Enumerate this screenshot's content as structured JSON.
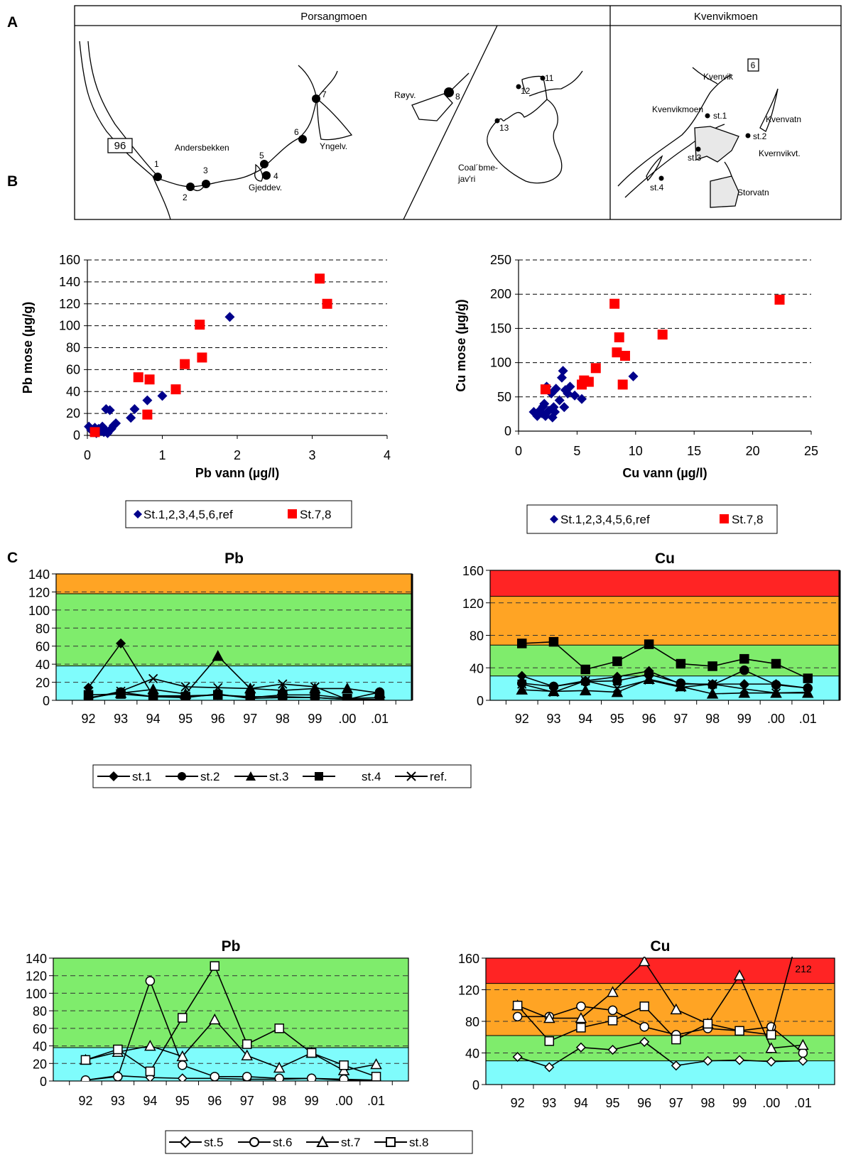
{
  "panels": {
    "a": "A",
    "b": "B",
    "c": "C"
  },
  "map": {
    "region_left": "Porsangmoen",
    "region_right": "Kvenvikmoen",
    "road_left": "96",
    "road_right": "6",
    "labels": {
      "andersbekken": "Andersbekken",
      "royv": "Røyv.",
      "yngelv": "Yngelv.",
      "gjeddev": "Gjeddev.",
      "coalbme": "Coal´bme-",
      "javri": "jav'ri",
      "kvenvik": "Kvenvik",
      "kvenvikmoen": "Kvenvikmoen",
      "kvenvatn": "Kvenvatn",
      "kvernvikvt": "Kvernvikvt.",
      "storvatn": "Storvatn",
      "st1": "st.1",
      "st2": "st.2",
      "st3": "st.3",
      "st4": "st.4"
    },
    "stations": [
      "1",
      "2",
      "3",
      "4",
      "5",
      "6",
      "7",
      "8",
      "11",
      "12",
      "13"
    ]
  },
  "chart_data": [
    {
      "id": "pb_scatter",
      "type": "scatter",
      "xlabel": "Pb vann (µg/l)",
      "ylabel": "Pb mose (µg/g)",
      "xlim": [
        0,
        4
      ],
      "ylim": [
        0,
        160
      ],
      "xticks": [
        0,
        1,
        2,
        3,
        4
      ],
      "yticks": [
        0,
        20,
        40,
        60,
        80,
        100,
        120,
        140,
        160
      ],
      "grid": "horizontal dashed",
      "legend_position": "bottom",
      "series": [
        {
          "name": "St.1,2,3,4,5,6,ref",
          "marker": "diamond",
          "color": "#00008b",
          "points": [
            [
              0.02,
              8
            ],
            [
              0.05,
              5
            ],
            [
              0.08,
              3
            ],
            [
              0.1,
              7
            ],
            [
              0.12,
              2
            ],
            [
              0.15,
              6
            ],
            [
              0.18,
              4
            ],
            [
              0.2,
              8
            ],
            [
              0.22,
              3
            ],
            [
              0.24,
              5
            ],
            [
              0.25,
              24
            ],
            [
              0.27,
              2
            ],
            [
              0.3,
              23
            ],
            [
              0.32,
              6
            ],
            [
              0.35,
              9
            ],
            [
              0.38,
              11
            ],
            [
              0.58,
              16
            ],
            [
              0.63,
              24
            ],
            [
              0.8,
              32
            ],
            [
              1.0,
              36
            ],
            [
              1.9,
              108
            ]
          ]
        },
        {
          "name": "St.7,8",
          "marker": "square",
          "color": "#ff0000",
          "points": [
            [
              0.1,
              3
            ],
            [
              0.68,
              53
            ],
            [
              0.8,
              19
            ],
            [
              0.83,
              51
            ],
            [
              1.18,
              42
            ],
            [
              1.3,
              65
            ],
            [
              1.5,
              101
            ],
            [
              1.53,
              71
            ],
            [
              3.1,
              143
            ],
            [
              3.2,
              120
            ]
          ]
        }
      ]
    },
    {
      "id": "cu_scatter",
      "type": "scatter",
      "xlabel": "Cu vann (µg/l)",
      "ylabel": "Cu mose (µg/g)",
      "xlim": [
        0,
        25
      ],
      "ylim": [
        0,
        250
      ],
      "xticks": [
        0,
        5,
        10,
        15,
        20,
        25
      ],
      "yticks": [
        0,
        50,
        100,
        150,
        200,
        250
      ],
      "grid": "horizontal dashed",
      "legend_position": "bottom",
      "series": [
        {
          "name": "St.1,2,3,4,5,6,ref",
          "marker": "diamond",
          "color": "#00008b",
          "points": [
            [
              1.3,
              28
            ],
            [
              1.6,
              22
            ],
            [
              1.8,
              30
            ],
            [
              2.0,
              26
            ],
            [
              2.1,
              36
            ],
            [
              2.2,
              40
            ],
            [
              2.3,
              22
            ],
            [
              2.4,
              65
            ],
            [
              2.6,
              30
            ],
            [
              2.8,
              55
            ],
            [
              2.9,
              20
            ],
            [
              3.0,
              35
            ],
            [
              3.1,
              28
            ],
            [
              3.2,
              62
            ],
            [
              3.5,
              45
            ],
            [
              3.7,
              78
            ],
            [
              3.8,
              88
            ],
            [
              3.9,
              35
            ],
            [
              4.0,
              60
            ],
            [
              4.2,
              55
            ],
            [
              4.4,
              65
            ],
            [
              4.8,
              52
            ],
            [
              5.4,
              47
            ],
            [
              9.8,
              80
            ]
          ]
        },
        {
          "name": "St.7,8",
          "marker": "square",
          "color": "#ff0000",
          "points": [
            [
              2.3,
              61
            ],
            [
              5.4,
              68
            ],
            [
              5.6,
              74
            ],
            [
              6.0,
              72
            ],
            [
              6.6,
              92
            ],
            [
              8.2,
              186
            ],
            [
              8.4,
              115
            ],
            [
              8.6,
              137
            ],
            [
              8.9,
              68
            ],
            [
              9.1,
              110
            ],
            [
              12.3,
              141
            ],
            [
              22.3,
              192
            ]
          ]
        }
      ]
    },
    {
      "id": "pb_top",
      "type": "line",
      "title": "Pb",
      "categories": [
        "92",
        "93",
        "94",
        "95",
        "96",
        "97",
        "98",
        "99",
        ".00",
        ".01"
      ],
      "ylim": [
        0,
        140
      ],
      "yticks": [
        0,
        20,
        40,
        60,
        80,
        100,
        120,
        140
      ],
      "bands": [
        {
          "from": 0,
          "to": 38,
          "color": "#7ffcfc"
        },
        {
          "from": 38,
          "to": 118,
          "color": "#7fec6c"
        },
        {
          "from": 118,
          "to": 140,
          "color": "#ffa424"
        }
      ],
      "legend_position": "bottom",
      "series": [
        {
          "name": "st.1",
          "marker": "diamond-filled",
          "values": [
            14,
            63,
            5,
            5,
            6,
            4,
            4,
            3,
            1,
            1
          ]
        },
        {
          "name": "st.2",
          "marker": "circle-filled",
          "values": [
            2,
            9,
            4,
            3,
            7,
            2,
            3,
            3,
            1,
            9
          ]
        },
        {
          "name": "st.3",
          "marker": "triangle-filled",
          "values": [
            3,
            8,
            12,
            7,
            49,
            13,
            11,
            13,
            13,
            8
          ]
        },
        {
          "name": "st.4",
          "marker": "square-filled",
          "values": [
            6,
            7,
            4,
            4,
            6,
            3,
            6,
            6,
            2,
            3
          ]
        },
        {
          "name": "ref.",
          "marker": "cross",
          "values": [
            2,
            10,
            24,
            15,
            14,
            13,
            18,
            15,
            1,
            1
          ]
        }
      ]
    },
    {
      "id": "cu_top",
      "type": "line",
      "title": "Cu",
      "categories": [
        "92",
        "93",
        "94",
        "95",
        "96",
        "97",
        "98",
        "99",
        ".00",
        ".01"
      ],
      "ylim": [
        0,
        160
      ],
      "yticks": [
        0,
        40,
        80,
        120,
        160
      ],
      "bands": [
        {
          "from": 0,
          "to": 30,
          "color": "#7ffcfc"
        },
        {
          "from": 30,
          "to": 68,
          "color": "#7fec6c"
        },
        {
          "from": 68,
          "to": 128,
          "color": "#ffa424"
        },
        {
          "from": 128,
          "to": 160,
          "color": "#ff2424"
        }
      ],
      "legend_position": "none",
      "series": [
        {
          "name": "st.1",
          "marker": "diamond-filled",
          "values": [
            30,
            17,
            24,
            29,
            36,
            20,
            20,
            20,
            20,
            15
          ]
        },
        {
          "name": "st.2",
          "marker": "circle-filled",
          "values": [
            21,
            17,
            23,
            24,
            32,
            21,
            19,
            37,
            19,
            15
          ]
        },
        {
          "name": "st.3",
          "marker": "triangle-filled",
          "values": [
            13,
            11,
            12,
            10,
            26,
            17,
            8,
            9,
            9,
            9
          ]
        },
        {
          "name": "st.4",
          "marker": "square-filled",
          "values": [
            70,
            72,
            38,
            48,
            69,
            45,
            42,
            51,
            45,
            27
          ]
        },
        {
          "name": "ref.",
          "marker": "cross",
          "values": [
            20,
            10,
            24,
            15,
            25,
            16,
            20,
            14,
            9,
            10
          ]
        }
      ]
    },
    {
      "id": "pb_bottom",
      "type": "line",
      "title": "Pb",
      "categories": [
        "92",
        "93",
        "94",
        "95",
        "96",
        "97",
        "98",
        "99",
        ".00",
        ".01"
      ],
      "ylim": [
        0,
        140
      ],
      "yticks": [
        0,
        20,
        40,
        60,
        80,
        100,
        120,
        140
      ],
      "bands": [
        {
          "from": 0,
          "to": 38,
          "color": "#7ffcfc"
        },
        {
          "from": 38,
          "to": 140,
          "color": "#7fec6c"
        }
      ],
      "legend_position": "bottom",
      "series": [
        {
          "name": "st.5",
          "marker": "diamond-open",
          "values": [
            1,
            6,
            4,
            3,
            3,
            2,
            2,
            3,
            1,
            0.5
          ]
        },
        {
          "name": "st.6",
          "marker": "circle-open",
          "values": [
            1,
            5,
            114,
            18,
            5,
            5,
            3,
            3,
            2,
            1
          ]
        },
        {
          "name": "st.7",
          "marker": "triangle-open",
          "values": [
            24,
            33,
            40,
            28,
            70,
            29,
            15,
            32,
            12,
            19
          ]
        },
        {
          "name": "st.8",
          "marker": "square-open",
          "values": [
            24,
            36,
            11,
            72,
            131,
            42,
            60,
            32,
            18,
            5
          ]
        }
      ]
    },
    {
      "id": "cu_bottom",
      "type": "line",
      "title": "Cu",
      "categories": [
        "92",
        "93",
        "94",
        "95",
        "96",
        "97",
        "98",
        "99",
        ".00",
        ".01"
      ],
      "ylim": [
        0,
        160
      ],
      "yticks": [
        0,
        40,
        80,
        120,
        160
      ],
      "bands": [
        {
          "from": 0,
          "to": 30,
          "color": "#7ffcfc"
        },
        {
          "from": 30,
          "to": 62,
          "color": "#7fec6c"
        },
        {
          "from": 62,
          "to": 128,
          "color": "#ffa424"
        },
        {
          "from": 128,
          "to": 160,
          "color": "#ff2424"
        }
      ],
      "legend_position": "none",
      "annotation": "212",
      "series": [
        {
          "name": "st.5",
          "marker": "diamond-open",
          "values": [
            35,
            22,
            47,
            44,
            54,
            24,
            30,
            31,
            29,
            30
          ]
        },
        {
          "name": "st.6",
          "marker": "circle-open",
          "values": [
            86,
            86,
            99,
            94,
            73,
            63,
            71,
            68,
            73,
            40
          ]
        },
        {
          "name": "st.7",
          "marker": "triangle-open",
          "values": [
            100,
            84,
            84,
            117,
            156,
            95,
            77,
            138,
            46,
            50
          ]
        },
        {
          "name": "st.8",
          "marker": "square-open",
          "values": [
            100,
            55,
            72,
            81,
            99,
            57,
            77,
            68,
            63,
            212
          ]
        }
      ]
    }
  ]
}
